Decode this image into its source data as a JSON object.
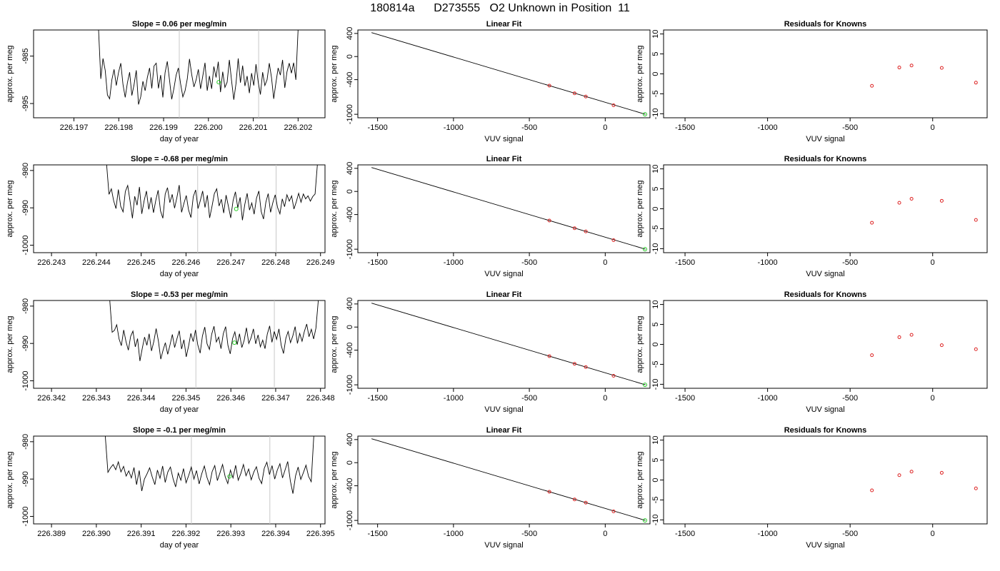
{
  "page_title": "180814a      D273555   O2 Unknown in Position  11",
  "chart_data": [
    {
      "type": "line",
      "title": "Slope =  0.06  per meg/min",
      "xlabel": "day of year",
      "ylabel": "approx. per meg",
      "xlim": [
        226.1961,
        226.2026
      ],
      "ylim": [
        -998,
        -979.5
      ],
      "xticks": [
        "226.197",
        "226.198",
        "226.199",
        "226.200",
        "226.201",
        "226.202"
      ],
      "yticks": [
        "-985",
        "-995"
      ],
      "vlines": [
        226.19935,
        226.20112
      ],
      "highlight_point": {
        "x": 226.20023,
        "y": -990.5
      },
      "series": [
        {
          "x_start": 226.19755,
          "x_end": 226.202,
          "values": [
            -978,
            -989.8,
            -985.5,
            -988,
            -993.2,
            -994,
            -990,
            -987.8,
            -991.2,
            -988.5,
            -986.5,
            -991,
            -993.7,
            -990.6,
            -988.4,
            -993.3,
            -991,
            -988,
            -995.2,
            -993.6,
            -990.3,
            -992.3,
            -989.5,
            -987.5,
            -991.8,
            -987.1,
            -986.5,
            -991.8,
            -989,
            -993.7,
            -988.5,
            -986.1,
            -990,
            -994.1,
            -991.8,
            -989,
            -987.5,
            -990.8,
            -993.6,
            -992.3,
            -989.8,
            -985.6,
            -988.9,
            -991.5,
            -990,
            -987.8,
            -991.9,
            -989.2,
            -986.4,
            -992.3,
            -989.2,
            -991.9,
            -987.2,
            -989.5,
            -986.2,
            -992.6,
            -988.3,
            -991.6,
            -990.5,
            -985.8,
            -990.2,
            -994.2,
            -990.8,
            -985.5,
            -990.6,
            -987,
            -991.3,
            -989.2,
            -992.8,
            -988.6,
            -991.2,
            -986.7,
            -990.5,
            -993.1,
            -988.4,
            -991.2,
            -990,
            -986.5,
            -989.5,
            -994,
            -990.6,
            -987.5,
            -989,
            -985.8,
            -991.7,
            -988.3,
            -986.5,
            -988.6,
            -986.4,
            -990,
            -978
          ]
        }
      ]
    },
    {
      "type": "line",
      "title": "Linear Fit",
      "xlabel": "VUV signal",
      "ylabel": "approx. per meg",
      "xlim": [
        -1630,
        295
      ],
      "ylim": [
        -1060,
        460
      ],
      "xticks": [
        "-1500",
        "-1000",
        "-500",
        "0"
      ],
      "yticks": [
        "400",
        "0",
        "-400",
        "-1000"
      ],
      "line": {
        "x": [
          -1540,
          265
        ],
        "y": [
          415,
          -1000
        ]
      },
      "known_points": [
        [
          -368,
          -504
        ],
        [
          -202,
          -636
        ],
        [
          -128,
          -692
        ],
        [
          55,
          -844
        ]
      ],
      "unknown_point": [
        262,
        -1000
      ]
    },
    {
      "type": "scatter",
      "title": "Residuals for Knowns",
      "xlabel": "VUV signal",
      "ylabel": "approx. per meg",
      "xlim": [
        -1630,
        330
      ],
      "ylim": [
        -11,
        11
      ],
      "xticks": [
        "-1500",
        "-1000",
        "-500",
        "0"
      ],
      "yticks": [
        "10",
        "5",
        "0",
        "-5",
        "-10"
      ],
      "points": [
        [
          -368,
          -3.0
        ],
        [
          -202,
          1.6
        ],
        [
          -128,
          2.1
        ],
        [
          55,
          1.5
        ],
        [
          262,
          -2.2
        ]
      ]
    },
    {
      "type": "line",
      "title": "Slope =  -0.68  per meg/min",
      "xlabel": "day of year",
      "ylabel": "approx. per meg",
      "xlim": [
        226.2426,
        226.2491
      ],
      "ylim": [
        -1002,
        -978.5
      ],
      "xticks": [
        "226.243",
        "226.244",
        "226.245",
        "226.246",
        "226.247",
        "226.248",
        "226.249"
      ],
      "yticks": [
        "-980",
        "-990",
        "-1000"
      ],
      "vlines": [
        226.24626,
        226.24801
      ],
      "highlight_point": {
        "x": 226.24712,
        "y": -990.3
      },
      "series": [
        {
          "x_start": 226.24423,
          "x_end": 226.24893,
          "values": [
            -978,
            -986.4,
            -984.9,
            -988.1,
            -990.2,
            -985.1,
            -989.6,
            -991.1,
            -985.6,
            -984,
            -988.2,
            -992.8,
            -986.9,
            -989.3,
            -984.4,
            -991.6,
            -988.1,
            -985.5,
            -990.4,
            -987.2,
            -991.3,
            -987.9,
            -985.3,
            -990.8,
            -992.8,
            -986.3,
            -984.6,
            -988.6,
            -986.4,
            -990.1,
            -987.2,
            -983.9,
            -991.2,
            -988.8,
            -986.7,
            -990.6,
            -992.6,
            -987,
            -985.2,
            -990.2,
            -988.1,
            -985.5,
            -989.9,
            -986.6,
            -992.7,
            -989.6,
            -986.2,
            -984.9,
            -989.5,
            -987.7,
            -991.4,
            -986.6,
            -989.6,
            -992.7,
            -988.1,
            -985.7,
            -990,
            -987.2,
            -993.3,
            -989.1,
            -986.1,
            -990.6,
            -988.7,
            -991.7,
            -987.4,
            -985.5,
            -991,
            -993,
            -988.5,
            -986.2,
            -991.2,
            -988.6,
            -986.5,
            -989.9,
            -991.6,
            -987.6,
            -989.7,
            -986.5,
            -988.2,
            -986.8,
            -990.3,
            -988.4,
            -986.1,
            -988.5,
            -986.3,
            -987.6,
            -986.8,
            -988.2,
            -987,
            -986.3,
            -978
          ]
        }
      ]
    },
    {
      "type": "line",
      "title": "Linear Fit",
      "xlabel": "VUV signal",
      "ylabel": "approx. per meg",
      "xlim": [
        -1630,
        295
      ],
      "ylim": [
        -1060,
        460
      ],
      "xticks": [
        "-1500",
        "-1000",
        "-500",
        "0"
      ],
      "yticks": [
        "400",
        "0",
        "-400",
        "-1000"
      ],
      "line": {
        "x": [
          -1540,
          265
        ],
        "y": [
          415,
          -1000
        ]
      },
      "known_points": [
        [
          -368,
          -504
        ],
        [
          -202,
          -636
        ],
        [
          -128,
          -692
        ],
        [
          55,
          -844
        ]
      ],
      "unknown_point": [
        262,
        -1000
      ]
    },
    {
      "type": "scatter",
      "title": "Residuals for Knowns",
      "xlabel": "VUV signal",
      "ylabel": "approx. per meg",
      "xlim": [
        -1630,
        330
      ],
      "ylim": [
        -11,
        11
      ],
      "xticks": [
        "-1500",
        "-1000",
        "-500",
        "0"
      ],
      "yticks": [
        "10",
        "5",
        "0",
        "-5",
        "-10"
      ],
      "points": [
        [
          -368,
          -3.5
        ],
        [
          -202,
          1.5
        ],
        [
          -128,
          2.5
        ],
        [
          55,
          2.0
        ],
        [
          262,
          -2.8
        ]
      ]
    },
    {
      "type": "line",
      "title": "Slope =  -0.53  per meg/min",
      "xlabel": "day of year",
      "ylabel": "approx. per meg",
      "xlim": [
        226.3416,
        226.3481
      ],
      "ylim": [
        -1002,
        -978.5
      ],
      "xticks": [
        "226.342",
        "226.343",
        "226.344",
        "226.345",
        "226.346",
        "226.347",
        "226.348"
      ],
      "yticks": [
        "-980",
        "-990",
        "-1000"
      ],
      "vlines": [
        226.34522,
        226.34697
      ],
      "highlight_point": {
        "x": 226.34608,
        "y": -989.8
      },
      "series": [
        {
          "x_start": 226.3433,
          "x_end": 226.34795,
          "values": [
            -978,
            -987,
            -986.5,
            -985,
            -988.8,
            -990.6,
            -986.4,
            -989.5,
            -991.8,
            -988.1,
            -986.7,
            -990.9,
            -988.7,
            -994.7,
            -991.4,
            -988.3,
            -990.5,
            -987.4,
            -992,
            -989.5,
            -986,
            -989.4,
            -994.2,
            -991.8,
            -989.8,
            -992.9,
            -990.4,
            -987.6,
            -991.1,
            -988.7,
            -986.6,
            -991.5,
            -989,
            -993.6,
            -990.7,
            -987.3,
            -989.5,
            -986.4,
            -990.4,
            -992.6,
            -988,
            -985.6,
            -990.1,
            -991.6,
            -987.5,
            -985.4,
            -989.6,
            -988.3,
            -991.4,
            -987.4,
            -985.5,
            -990.5,
            -992.8,
            -988.7,
            -986.9,
            -990.3,
            -987.4,
            -991.1,
            -989.2,
            -985.8,
            -990,
            -988.5,
            -986.1,
            -990.1,
            -987.7,
            -990.9,
            -989.1,
            -991.4,
            -987.5,
            -985.3,
            -989.7,
            -986.8,
            -988.9,
            -986.1,
            -990.5,
            -992.7,
            -988.6,
            -986.8,
            -989.8,
            -988,
            -985.5,
            -990,
            -987.3,
            -989.4,
            -986.8,
            -984.8,
            -988.2,
            -986.2,
            -988.8,
            -985.9,
            -978
          ]
        }
      ]
    },
    {
      "type": "line",
      "title": "Linear Fit",
      "xlabel": "VUV signal",
      "ylabel": "approx. per meg",
      "xlim": [
        -1630,
        295
      ],
      "ylim": [
        -1060,
        460
      ],
      "xticks": [
        "-1500",
        "-1000",
        "-500",
        "0"
      ],
      "yticks": [
        "400",
        "0",
        "-400",
        "-1000"
      ],
      "line": {
        "x": [
          -1540,
          265
        ],
        "y": [
          415,
          -1000
        ]
      },
      "known_points": [
        [
          -368,
          -504
        ],
        [
          -202,
          -636
        ],
        [
          -128,
          -692
        ],
        [
          55,
          -844
        ]
      ],
      "unknown_point": [
        262,
        -1000
      ]
    },
    {
      "type": "scatter",
      "title": "Residuals for Knowns",
      "xlabel": "VUV signal",
      "ylabel": "approx. per meg",
      "xlim": [
        -1630,
        330
      ],
      "ylim": [
        -11,
        11
      ],
      "xticks": [
        "-1500",
        "-1000",
        "-500",
        "0"
      ],
      "yticks": [
        "10",
        "5",
        "0",
        "-5",
        "-10"
      ],
      "points": [
        [
          -368,
          -2.7
        ],
        [
          -202,
          1.8
        ],
        [
          -128,
          2.4
        ],
        [
          55,
          -0.2
        ],
        [
          262,
          -1.2
        ]
      ]
    },
    {
      "type": "line",
      "title": "Slope =  -0.1  per meg/min",
      "xlabel": "day of year",
      "ylabel": "approx. per meg",
      "xlim": [
        226.3886,
        226.3951
      ],
      "ylim": [
        -1002,
        -978.5
      ],
      "xticks": [
        "226.389",
        "226.390",
        "226.391",
        "226.392",
        "226.393",
        "226.394",
        "226.395"
      ],
      "yticks": [
        "-980",
        "-990",
        "-1000"
      ],
      "vlines": [
        226.39212,
        226.39387
      ],
      "highlight_point": {
        "x": 226.39297,
        "y": -989.3
      },
      "series": [
        {
          "x_start": 226.3902,
          "x_end": 226.39485,
          "values": [
            -978,
            -988.2,
            -987,
            -986.1,
            -987.5,
            -985.4,
            -988.1,
            -986.6,
            -989.2,
            -987.8,
            -989.7,
            -986.9,
            -991.5,
            -987.7,
            -993.2,
            -990,
            -988.6,
            -987,
            -989.4,
            -991.5,
            -987.6,
            -989.8,
            -986.5,
            -990.9,
            -988.1,
            -986.8,
            -989.9,
            -992.1,
            -988.4,
            -990.3,
            -987.2,
            -991,
            -989,
            -986.8,
            -990,
            -987.7,
            -991.3,
            -988.6,
            -986.5,
            -989.5,
            -991.5,
            -988,
            -986.4,
            -990.4,
            -988.3,
            -986.1,
            -989.4,
            -991.2,
            -987.6,
            -989.7,
            -986.3,
            -990.3,
            -988.5,
            -986.1,
            -989.1,
            -987.3,
            -990.2,
            -988.1,
            -986.7,
            -989.8,
            -991.2,
            -987.1,
            -985.5,
            -988.8,
            -986.4,
            -990,
            -987.6,
            -985.9,
            -989.7,
            -987.5,
            -985.3,
            -990.5,
            -993.9,
            -989.1,
            -986.8,
            -990.1,
            -988.3,
            -986.3,
            -989.3,
            -990.7,
            -978
          ]
        }
      ]
    },
    {
      "type": "line",
      "title": "Linear Fit",
      "xlabel": "VUV signal",
      "ylabel": "approx. per meg",
      "xlim": [
        -1630,
        295
      ],
      "ylim": [
        -1060,
        460
      ],
      "xticks": [
        "-1500",
        "-1000",
        "-500",
        "0"
      ],
      "yticks": [
        "400",
        "0",
        "-400",
        "-1000"
      ],
      "line": {
        "x": [
          -1540,
          265
        ],
        "y": [
          415,
          -1000
        ]
      },
      "known_points": [
        [
          -368,
          -504
        ],
        [
          -202,
          -636
        ],
        [
          -128,
          -692
        ],
        [
          55,
          -844
        ]
      ],
      "unknown_point": [
        262,
        -1000
      ]
    },
    {
      "type": "scatter",
      "title": "Residuals for Knowns",
      "xlabel": "VUV signal",
      "ylabel": "approx. per meg",
      "xlim": [
        -1630,
        330
      ],
      "ylim": [
        -11,
        11
      ],
      "xticks": [
        "-1500",
        "-1000",
        "-500",
        "0"
      ],
      "yticks": [
        "10",
        "5",
        "0",
        "-5",
        "-10"
      ],
      "points": [
        [
          -368,
          -2.6
        ],
        [
          -202,
          1.2
        ],
        [
          -128,
          2.1
        ],
        [
          55,
          1.8
        ],
        [
          262,
          -2.1
        ]
      ]
    }
  ]
}
